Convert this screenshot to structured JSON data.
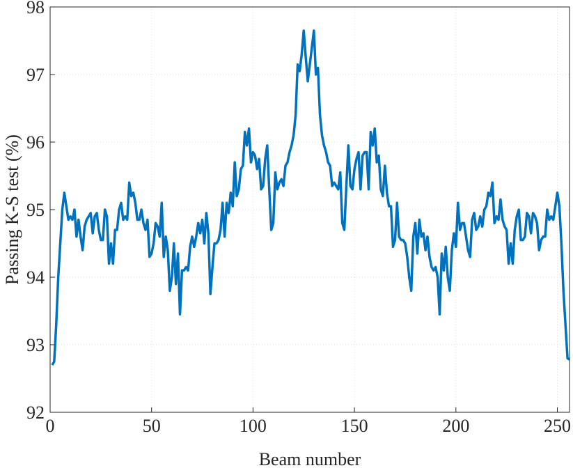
{
  "chart_data": {
    "type": "line",
    "xlabel": "Beam number",
    "ylabel": "Passing K-S test (%)",
    "xlim": [
      0,
      256
    ],
    "xticks": [
      0,
      50,
      100,
      150,
      200,
      250
    ],
    "ylim": [
      92,
      98
    ],
    "yticks": [
      92,
      93,
      94,
      95,
      96,
      97,
      98
    ],
    "grid": true,
    "series": [
      {
        "color": "#0072bd",
        "x": [
          1,
          2,
          3,
          4,
          5,
          6,
          7,
          8,
          9,
          10,
          11,
          12,
          13,
          14,
          15,
          16,
          17,
          18,
          19,
          20,
          21,
          22,
          23,
          24,
          25,
          26,
          27,
          28,
          29,
          30,
          31,
          32,
          33,
          34,
          35,
          36,
          37,
          38,
          39,
          40,
          41,
          42,
          43,
          44,
          45,
          46,
          47,
          48,
          49,
          50,
          51,
          52,
          53,
          54,
          55,
          56,
          57,
          58,
          59,
          60,
          61,
          62,
          63,
          64,
          65,
          66,
          67,
          68,
          69,
          70,
          71,
          72,
          73,
          74,
          75,
          76,
          77,
          78,
          79,
          80,
          81,
          82,
          83,
          84,
          85,
          86,
          87,
          88,
          89,
          90,
          91,
          92,
          93,
          94,
          95,
          96,
          97,
          98,
          99,
          100,
          101,
          102,
          103,
          104,
          105,
          106,
          107,
          108,
          109,
          110,
          111,
          112,
          113,
          114,
          115,
          116,
          117,
          118,
          119,
          120,
          121,
          122,
          123,
          124,
          125,
          126,
          127,
          128,
          129,
          130,
          131,
          132,
          133,
          134,
          135,
          136,
          137,
          138,
          139,
          140,
          141,
          142,
          143,
          144,
          145,
          146,
          147,
          148,
          149,
          150,
          151,
          152,
          153,
          154,
          155,
          156,
          157,
          158,
          159,
          160,
          161,
          162,
          163,
          164,
          165,
          166,
          167,
          168,
          169,
          170,
          171,
          172,
          173,
          174,
          175,
          176,
          177,
          178,
          179,
          180,
          181,
          182,
          183,
          184,
          185,
          186,
          187,
          188,
          189,
          190,
          191,
          192,
          193,
          194,
          195,
          196,
          197,
          198,
          199,
          200,
          201,
          202,
          203,
          204,
          205,
          206,
          207,
          208,
          209,
          210,
          211,
          212,
          213,
          214,
          215,
          216,
          217,
          218,
          219,
          220,
          221,
          222,
          223,
          224,
          225,
          226,
          227,
          228,
          229,
          230,
          231,
          232,
          233,
          234,
          235,
          236,
          237,
          238,
          239,
          240,
          241,
          242,
          243,
          244,
          245,
          246,
          247,
          248,
          249,
          250,
          251,
          252,
          253,
          254,
          255,
          256
        ],
        "values": [
          92.7,
          92.75,
          93.3,
          94.0,
          94.5,
          95.0,
          95.25,
          95.05,
          94.85,
          94.9,
          94.85,
          95.0,
          94.6,
          94.85,
          94.6,
          94.4,
          94.75,
          94.85,
          94.9,
          94.95,
          94.65,
          94.9,
          94.95,
          94.7,
          94.55,
          94.55,
          95.0,
          94.9,
          94.2,
          94.5,
          94.2,
          94.7,
          94.7,
          95.0,
          95.1,
          94.85,
          94.9,
          94.85,
          95.4,
          95.2,
          95.25,
          95.1,
          94.85,
          94.85,
          95.0,
          94.8,
          94.7,
          94.85,
          94.3,
          94.35,
          94.5,
          94.8,
          94.75,
          94.6,
          95.1,
          94.3,
          94.6,
          94.4,
          93.8,
          94.0,
          94.5,
          93.9,
          94.35,
          93.45,
          94.1,
          94.1,
          94.15,
          94.1,
          94.45,
          94.6,
          94.45,
          94.6,
          94.8,
          94.65,
          94.85,
          94.5,
          94.95,
          94.65,
          93.75,
          94.15,
          94.5,
          94.5,
          94.55,
          94.7,
          95.1,
          94.6,
          95.1,
          94.95,
          95.25,
          95.05,
          95.7,
          95.2,
          95.3,
          95.6,
          95.65,
          96.15,
          95.95,
          96.2,
          95.7,
          95.85,
          95.8,
          95.6,
          95.75,
          95.3,
          95.35,
          95.75,
          95.95,
          95.3,
          94.7,
          94.8,
          95.55,
          95.3,
          95.4,
          95.45,
          95.35,
          95.65,
          95.7,
          95.85,
          95.95,
          96.1,
          96.4,
          97.15,
          97.05,
          97.3,
          97.65,
          97.25,
          96.9,
          97.15,
          97.4,
          97.65,
          97.0,
          97.1,
          96.4,
          96.1,
          95.95,
          95.85,
          95.7,
          95.65,
          95.35,
          95.4,
          95.35,
          95.3,
          95.55,
          94.8,
          94.7,
          95.35,
          95.95,
          95.35,
          95.3,
          95.6,
          95.75,
          95.85,
          95.3,
          95.8,
          95.85,
          95.85,
          95.3,
          96.15,
          95.95,
          96.2,
          95.7,
          95.8,
          95.3,
          95.2,
          95.65,
          95.25,
          95.05,
          95.05,
          94.45,
          94.55,
          95.1,
          94.6,
          94.55,
          94.55,
          94.5,
          94.3,
          94.0,
          93.8,
          94.6,
          94.8,
          94.35,
          94.85,
          94.6,
          94.65,
          94.4,
          94.6,
          94.3,
          94.15,
          94.1,
          94.15,
          94.0,
          93.45,
          94.35,
          94.1,
          94.45,
          94.0,
          93.8,
          94.4,
          94.65,
          94.45,
          95.1,
          94.7,
          94.8,
          94.8,
          94.6,
          94.4,
          94.3,
          94.85,
          94.95,
          94.7,
          94.75,
          94.9,
          94.75,
          95.0,
          95.05,
          95.25,
          95.2,
          95.4,
          94.8,
          94.9,
          94.85,
          95.15,
          94.85,
          94.75,
          94.7,
          94.2,
          94.5,
          94.2,
          94.7,
          94.9,
          95.0,
          94.55,
          94.55,
          94.6,
          94.95,
          94.9,
          94.65,
          94.95,
          94.9,
          94.8,
          94.4,
          94.55,
          94.6,
          94.6,
          95.0,
          94.85,
          94.9,
          94.85,
          95.05,
          95.25,
          95.05,
          94.5,
          93.8,
          93.3,
          92.8,
          92.78
        ]
      }
    ]
  }
}
